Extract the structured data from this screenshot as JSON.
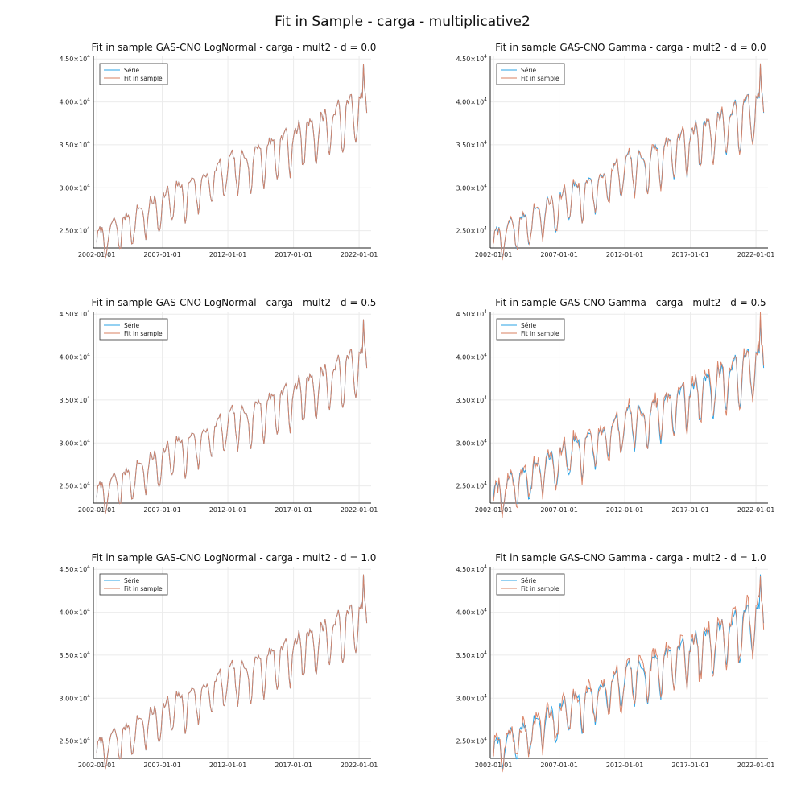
{
  "figure": {
    "title": "Fit in Sample - carga - multiplicative2"
  },
  "colors": {
    "serie": "#2AA3E6",
    "fit": "#D98062",
    "axis": "#222222",
    "grid": "#EBEBEB"
  },
  "chart_data": [
    {
      "type": "line",
      "title": "Fit in sample GAS-CNO LogNormal - carga - mult2 - d = 0.0",
      "x_ticks": [
        "2002-01-01",
        "2007-01-01",
        "2012-01-01",
        "2017-01-01",
        "2022-01-01"
      ],
      "y_ticks": [
        {
          "value": 25000,
          "mantissa": "2.50",
          "exp": "4"
        },
        {
          "value": 30000,
          "mantissa": "3.00",
          "exp": "4"
        },
        {
          "value": 35000,
          "mantissa": "3.50",
          "exp": "4"
        },
        {
          "value": 40000,
          "mantissa": "4.00",
          "exp": "4"
        },
        {
          "value": 45000,
          "mantissa": "4.50",
          "exp": "4"
        }
      ],
      "ylim": [
        23000,
        45300
      ],
      "x_range": [
        "2001-10-01",
        "2022-12-01"
      ],
      "legend": {
        "position": "top-left",
        "entries": [
          "Série",
          "Fit in sample"
        ]
      },
      "grid": true,
      "series": [
        {
          "name": "Série",
          "generator": {
            "start": "2002-01-01",
            "months": 248,
            "base": 23500,
            "end_level": 39200,
            "amp_year": 2200,
            "amp_half": 900,
            "noise": 650,
            "seed": 7
          }
        },
        {
          "name": "Fit in sample",
          "generator_offset": {
            "amp": 0,
            "seed": 11
          }
        }
      ]
    },
    {
      "type": "line",
      "title": "Fit in sample GAS-CNO Gamma - carga - mult2 - d = 0.0",
      "x_ticks": [
        "2002-01-01",
        "2007-01-01",
        "2012-01-01",
        "2017-01-01",
        "2022-01-01"
      ],
      "y_ticks": [
        {
          "value": 25000,
          "mantissa": "2.50",
          "exp": "4"
        },
        {
          "value": 30000,
          "mantissa": "3.00",
          "exp": "4"
        },
        {
          "value": 35000,
          "mantissa": "3.50",
          "exp": "4"
        },
        {
          "value": 40000,
          "mantissa": "4.00",
          "exp": "4"
        },
        {
          "value": 45000,
          "mantissa": "4.50",
          "exp": "4"
        }
      ],
      "ylim": [
        23000,
        45300
      ],
      "x_range": [
        "2001-10-01",
        "2022-12-01"
      ],
      "legend": {
        "position": "top-left",
        "entries": [
          "Série",
          "Fit in sample"
        ]
      },
      "grid": true,
      "series": [
        {
          "name": "Série",
          "generator": {
            "start": "2002-01-01",
            "months": 248,
            "base": 23500,
            "end_level": 39200,
            "amp_year": 2200,
            "amp_half": 900,
            "noise": 650,
            "seed": 7
          }
        },
        {
          "name": "Fit in sample",
          "generator_offset": {
            "amp": 250,
            "seed": 13
          }
        }
      ]
    },
    {
      "type": "line",
      "title": "Fit in sample GAS-CNO LogNormal - carga - mult2 - d = 0.5",
      "x_ticks": [
        "2002-01-01",
        "2007-01-01",
        "2012-01-01",
        "2017-01-01",
        "2022-01-01"
      ],
      "y_ticks": [
        {
          "value": 25000,
          "mantissa": "2.50",
          "exp": "4"
        },
        {
          "value": 30000,
          "mantissa": "3.00",
          "exp": "4"
        },
        {
          "value": 35000,
          "mantissa": "3.50",
          "exp": "4"
        },
        {
          "value": 40000,
          "mantissa": "4.00",
          "exp": "4"
        },
        {
          "value": 45000,
          "mantissa": "4.50",
          "exp": "4"
        }
      ],
      "ylim": [
        23000,
        45300
      ],
      "x_range": [
        "2001-10-01",
        "2022-12-01"
      ],
      "legend": {
        "position": "top-left",
        "entries": [
          "Série",
          "Fit in sample"
        ]
      },
      "grid": true,
      "series": [
        {
          "name": "Série",
          "generator": {
            "start": "2002-01-01",
            "months": 248,
            "base": 23500,
            "end_level": 39200,
            "amp_year": 2200,
            "amp_half": 900,
            "noise": 650,
            "seed": 7
          }
        },
        {
          "name": "Fit in sample",
          "generator_offset": {
            "amp": 0,
            "seed": 17
          }
        }
      ]
    },
    {
      "type": "line",
      "title": "Fit in sample GAS-CNO Gamma - carga - mult2 - d = 0.5",
      "x_ticks": [
        "2002-01-01",
        "2007-01-01",
        "2012-01-01",
        "2017-01-01",
        "2022-01-01"
      ],
      "y_ticks": [
        {
          "value": 25000,
          "mantissa": "2.50",
          "exp": "4"
        },
        {
          "value": 30000,
          "mantissa": "3.00",
          "exp": "4"
        },
        {
          "value": 35000,
          "mantissa": "3.50",
          "exp": "4"
        },
        {
          "value": 40000,
          "mantissa": "4.00",
          "exp": "4"
        },
        {
          "value": 45000,
          "mantissa": "4.50",
          "exp": "4"
        }
      ],
      "ylim": [
        23000,
        45300
      ],
      "x_range": [
        "2001-10-01",
        "2022-12-01"
      ],
      "legend": {
        "position": "top-left",
        "entries": [
          "Série",
          "Fit in sample"
        ]
      },
      "grid": true,
      "series": [
        {
          "name": "Série",
          "generator": {
            "start": "2002-01-01",
            "months": 248,
            "base": 23500,
            "end_level": 39200,
            "amp_year": 2200,
            "amp_half": 900,
            "noise": 650,
            "seed": 7
          }
        },
        {
          "name": "Fit in sample",
          "generator_offset": {
            "amp": 700,
            "seed": 19,
            "bias": 350
          }
        }
      ]
    },
    {
      "type": "line",
      "title": "Fit in sample GAS-CNO LogNormal - carga - mult2 - d = 1.0",
      "x_ticks": [
        "2002-01-01",
        "2007-01-01",
        "2012-01-01",
        "2017-01-01",
        "2022-01-01"
      ],
      "y_ticks": [
        {
          "value": 25000,
          "mantissa": "2.50",
          "exp": "4"
        },
        {
          "value": 30000,
          "mantissa": "3.00",
          "exp": "4"
        },
        {
          "value": 35000,
          "mantissa": "3.50",
          "exp": "4"
        },
        {
          "value": 40000,
          "mantissa": "4.00",
          "exp": "4"
        },
        {
          "value": 45000,
          "mantissa": "4.50",
          "exp": "4"
        }
      ],
      "ylim": [
        23000,
        45300
      ],
      "x_range": [
        "2001-10-01",
        "2022-12-01"
      ],
      "legend": {
        "position": "top-left",
        "entries": [
          "Série",
          "Fit in sample"
        ]
      },
      "grid": true,
      "series": [
        {
          "name": "Série",
          "generator": {
            "start": "2002-01-01",
            "months": 248,
            "base": 23500,
            "end_level": 39200,
            "amp_year": 2200,
            "amp_half": 900,
            "noise": 650,
            "seed": 7
          }
        },
        {
          "name": "Fit in sample",
          "generator_offset": {
            "amp": 0,
            "seed": 23
          }
        }
      ]
    },
    {
      "type": "line",
      "title": "Fit in sample GAS-CNO Gamma - carga - mult2 - d = 1.0",
      "x_ticks": [
        "2002-01-01",
        "2007-01-01",
        "2012-01-01",
        "2017-01-01",
        "2022-01-01"
      ],
      "y_ticks": [
        {
          "value": 25000,
          "mantissa": "2.50",
          "exp": "4"
        },
        {
          "value": 30000,
          "mantissa": "3.00",
          "exp": "4"
        },
        {
          "value": 35000,
          "mantissa": "3.50",
          "exp": "4"
        },
        {
          "value": 40000,
          "mantissa": "4.00",
          "exp": "4"
        },
        {
          "value": 45000,
          "mantissa": "4.50",
          "exp": "4"
        }
      ],
      "ylim": [
        23000,
        45300
      ],
      "x_range": [
        "2001-10-01",
        "2022-12-01"
      ],
      "legend": {
        "position": "top-left",
        "entries": [
          "Série",
          "Fit in sample"
        ]
      },
      "grid": true,
      "series": [
        {
          "name": "Série",
          "generator": {
            "start": "2002-01-01",
            "months": 248,
            "base": 23500,
            "end_level": 39200,
            "amp_year": 2200,
            "amp_half": 900,
            "noise": 650,
            "seed": 7
          }
        },
        {
          "name": "Fit in sample",
          "generator_offset": {
            "amp": 800,
            "seed": 29,
            "bias": 450
          }
        }
      ]
    }
  ]
}
